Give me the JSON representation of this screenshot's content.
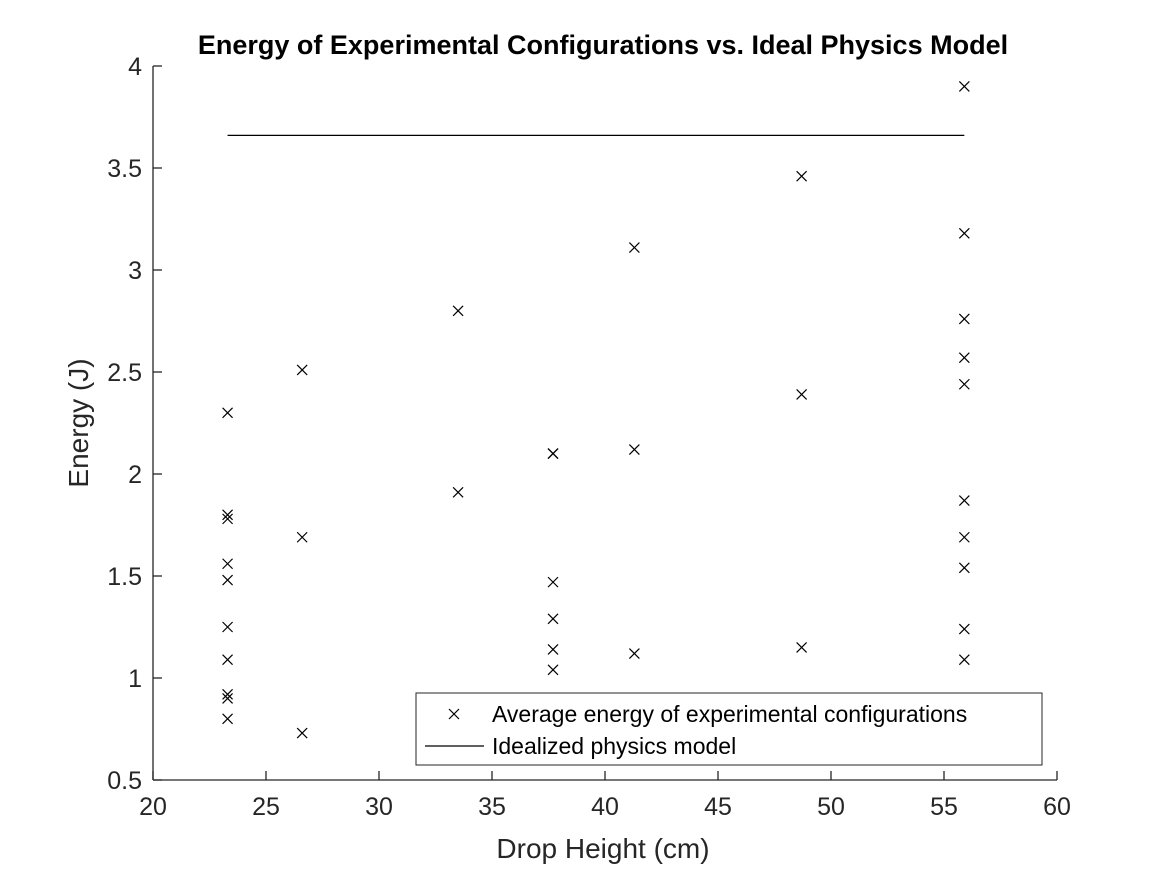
{
  "chart_data": {
    "type": "scatter",
    "title": "Energy of Experimental Configurations vs. Ideal Physics Model",
    "xlabel": "Drop Height (cm)",
    "ylabel": "Energy (J)",
    "xlim": [
      20,
      60
    ],
    "ylim": [
      0.5,
      4
    ],
    "xticks": [
      20,
      25,
      30,
      35,
      40,
      45,
      50,
      55,
      60
    ],
    "yticks": [
      0.5,
      1,
      1.5,
      2,
      2.5,
      3,
      3.5,
      4
    ],
    "xtick_labels": [
      "20",
      "25",
      "30",
      "35",
      "40",
      "45",
      "50",
      "55",
      "60"
    ],
    "ytick_labels": [
      "0.5",
      "1",
      "1.5",
      "2",
      "2.5",
      "3",
      "3.5",
      "4"
    ],
    "grid": false,
    "legend_position": "bottom-right",
    "series": [
      {
        "name": "Average energy of experimental configurations",
        "marker": "x",
        "color": "#000000",
        "points": [
          [
            23.3,
            2.3
          ],
          [
            23.3,
            1.8
          ],
          [
            23.3,
            1.78
          ],
          [
            23.3,
            1.56
          ],
          [
            23.3,
            1.48
          ],
          [
            23.3,
            1.25
          ],
          [
            23.3,
            1.09
          ],
          [
            23.3,
            0.92
          ],
          [
            23.3,
            0.9
          ],
          [
            23.3,
            0.8
          ],
          [
            26.6,
            2.51
          ],
          [
            26.6,
            1.69
          ],
          [
            26.6,
            0.73
          ],
          [
            33.5,
            2.8
          ],
          [
            33.5,
            1.91
          ],
          [
            37.7,
            2.1
          ],
          [
            37.7,
            2.1
          ],
          [
            37.7,
            1.47
          ],
          [
            37.7,
            1.29
          ],
          [
            37.7,
            1.14
          ],
          [
            37.7,
            1.04
          ],
          [
            41.3,
            3.11
          ],
          [
            41.3,
            2.12
          ],
          [
            41.3,
            1.12
          ],
          [
            48.7,
            3.46
          ],
          [
            48.7,
            2.39
          ],
          [
            48.7,
            1.15
          ],
          [
            55.9,
            3.9
          ],
          [
            55.9,
            3.18
          ],
          [
            55.9,
            2.76
          ],
          [
            55.9,
            2.57
          ],
          [
            55.9,
            2.44
          ],
          [
            55.9,
            1.87
          ],
          [
            55.9,
            1.69
          ],
          [
            55.9,
            1.54
          ],
          [
            55.9,
            1.24
          ],
          [
            55.9,
            1.09
          ]
        ]
      },
      {
        "name": "Idealized physics model",
        "marker": "line",
        "color": "#000000",
        "points": [
          [
            23.3,
            3.66
          ],
          [
            55.9,
            3.66
          ]
        ]
      }
    ]
  }
}
